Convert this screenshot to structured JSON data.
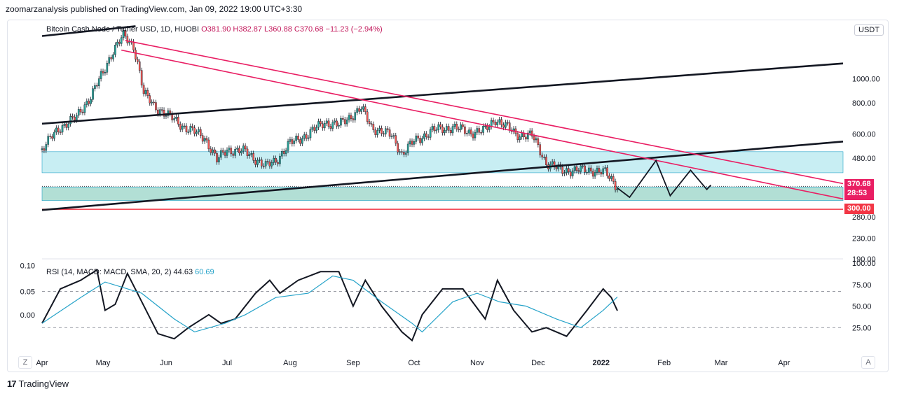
{
  "header": {
    "publisher_line": "zoomarzanalysis published on TradingView.com, Jan 09, 2022 19:00 UTC+3:30"
  },
  "legend": {
    "symbol": "Bitcoin Cash Node / Tether USD, 1D, HUOBI",
    "open": "O381.90",
    "high": "H382.87",
    "low": "L360.88",
    "close": "C370.68",
    "change": "−11.23 (−2.94%)"
  },
  "rsi_legend": {
    "prefix": "RSI (14, MACD: MACD, SMA, 20, 2)",
    "value_a": "44.63",
    "value_b": "60.69"
  },
  "unit": "USDT",
  "price_tag": {
    "price": "370.68",
    "countdown": "28:53"
  },
  "level_tag": "300.00",
  "corner_left": "Z",
  "corner_right": "A",
  "brand": {
    "logo": "17",
    "name": "TradingView"
  },
  "chart_data": [
    {
      "type": "candlestick",
      "name": "price",
      "y_scale": "log",
      "y_ticks": [
        "1000.00",
        "800.00",
        "600.00",
        "480.00",
        "280.00",
        "230.00",
        "190.00"
      ],
      "y_tick_values": [
        1000,
        800,
        600,
        480,
        280,
        230,
        190
      ],
      "x_ticks": [
        "Apr",
        "May",
        "Jun",
        "Jul",
        "Aug",
        "Sep",
        "Oct",
        "Nov",
        "Dec",
        "2022",
        "Feb",
        "Mar",
        "Apr"
      ],
      "x_tick_dates": [
        "2021-04-01",
        "2021-05-01",
        "2021-06-01",
        "2021-07-01",
        "2021-08-01",
        "2021-09-01",
        "2021-10-01",
        "2021-11-01",
        "2021-12-01",
        "2022-01-01",
        "2022-02-01",
        "2022-03-01",
        "2022-04-01"
      ],
      "ohlc_last": {
        "open": 381.9,
        "high": 382.87,
        "low": 360.88,
        "close": 370.68
      },
      "closes_approx": [
        [
          "2021-04-01",
          520
        ],
        [
          "2021-04-10",
          640
        ],
        [
          "2021-04-18",
          700
        ],
        [
          "2021-04-25",
          850
        ],
        [
          "2021-05-01",
          1050
        ],
        [
          "2021-05-06",
          1300
        ],
        [
          "2021-05-11",
          1480
        ],
        [
          "2021-05-16",
          1350
        ],
        [
          "2021-05-21",
          870
        ],
        [
          "2021-05-26",
          780
        ],
        [
          "2021-06-01",
          720
        ],
        [
          "2021-06-10",
          640
        ],
        [
          "2021-06-20",
          580
        ],
        [
          "2021-06-26",
          470
        ],
        [
          "2021-07-01",
          520
        ],
        [
          "2021-07-10",
          510
        ],
        [
          "2021-07-20",
          445
        ],
        [
          "2021-07-25",
          470
        ],
        [
          "2021-08-01",
          550
        ],
        [
          "2021-08-10",
          600
        ],
        [
          "2021-08-18",
          670
        ],
        [
          "2021-08-25",
          650
        ],
        [
          "2021-09-05",
          760
        ],
        [
          "2021-09-10",
          640
        ],
        [
          "2021-09-20",
          590
        ],
        [
          "2021-09-25",
          500
        ],
        [
          "2021-10-01",
          560
        ],
        [
          "2021-10-10",
          620
        ],
        [
          "2021-10-20",
          640
        ],
        [
          "2021-10-28",
          610
        ],
        [
          "2021-11-05",
          620
        ],
        [
          "2021-11-10",
          690
        ],
        [
          "2021-11-20",
          600
        ],
        [
          "2021-11-28",
          590
        ],
        [
          "2021-12-05",
          460
        ],
        [
          "2021-12-12",
          430
        ],
        [
          "2021-12-20",
          430
        ],
        [
          "2021-12-28",
          430
        ],
        [
          "2022-01-03",
          420
        ],
        [
          "2022-01-09",
          370.68
        ]
      ],
      "zones": [
        {
          "from": 420,
          "to": 510,
          "color": "#c8eef3"
        },
        {
          "from": 325,
          "to": 368,
          "color": "#b2dfd5"
        }
      ],
      "horizontal_line": {
        "value": 300,
        "color": "#f23645"
      },
      "trendlines": [
        {
          "color": "#131722",
          "from": [
            "2021-04-01",
            1480
          ],
          "to": [
            "2021-05-17",
            1620
          ]
        },
        {
          "color": "#131722",
          "from": [
            "2021-04-01",
            660
          ],
          "to": [
            "2022-04-30",
            1150
          ]
        },
        {
          "color": "#131722",
          "from": [
            "2021-04-01",
            298
          ],
          "to": [
            "2022-04-30",
            560
          ]
        },
        {
          "color": "#e91e63",
          "from": [
            "2021-05-10",
            1300
          ],
          "to": [
            "2022-04-30",
            330
          ]
        },
        {
          "color": "#e91e63",
          "from": [
            "2021-05-12",
            1420
          ],
          "to": [
            "2022-04-30",
            380
          ]
        }
      ],
      "projection": [
        [
          "2022-01-09",
          365
        ],
        [
          "2022-01-15",
          335
        ],
        [
          "2022-01-28",
          470
        ],
        [
          "2022-02-04",
          340
        ],
        [
          "2022-02-14",
          430
        ],
        [
          "2022-02-22",
          360
        ],
        [
          "2022-02-24",
          375
        ]
      ]
    },
    {
      "type": "line",
      "name": "oscillator",
      "y_ticks": [
        "0.10",
        "0.05",
        "0.00"
      ],
      "y_ticks_right": [
        "100.00",
        "75.00",
        "50.00",
        "25.00"
      ],
      "y_ticks_right_values": [
        100,
        75,
        50,
        25
      ],
      "guide_levels": [
        67,
        25
      ],
      "series": [
        {
          "name": "RSI",
          "color": "#131722",
          "values": [
            [
              "2021-04-01",
              30
            ],
            [
              "2021-04-10",
              70
            ],
            [
              "2021-04-20",
              80
            ],
            [
              "2021-04-28",
              92
            ],
            [
              "2021-05-02",
              45
            ],
            [
              "2021-05-07",
              52
            ],
            [
              "2021-05-13",
              88
            ],
            [
              "2021-05-19",
              60
            ],
            [
              "2021-05-28",
              18
            ],
            [
              "2021-06-05",
              12
            ],
            [
              "2021-06-12",
              25
            ],
            [
              "2021-06-22",
              40
            ],
            [
              "2021-06-28",
              30
            ],
            [
              "2021-07-05",
              35
            ],
            [
              "2021-07-15",
              65
            ],
            [
              "2021-07-22",
              80
            ],
            [
              "2021-07-27",
              65
            ],
            [
              "2021-08-05",
              80
            ],
            [
              "2021-08-16",
              90
            ],
            [
              "2021-08-25",
              90
            ],
            [
              "2021-09-01",
              50
            ],
            [
              "2021-09-07",
              80
            ],
            [
              "2021-09-15",
              50
            ],
            [
              "2021-09-25",
              20
            ],
            [
              "2021-09-30",
              10
            ],
            [
              "2021-10-05",
              40
            ],
            [
              "2021-10-15",
              70
            ],
            [
              "2021-10-25",
              70
            ],
            [
              "2021-11-05",
              35
            ],
            [
              "2021-11-11",
              80
            ],
            [
              "2021-11-19",
              45
            ],
            [
              "2021-11-28",
              20
            ],
            [
              "2021-12-05",
              25
            ],
            [
              "2021-12-15",
              15
            ],
            [
              "2021-12-25",
              45
            ],
            [
              "2022-01-02",
              70
            ],
            [
              "2022-01-06",
              60
            ],
            [
              "2022-01-09",
              44.63
            ]
          ]
        },
        {
          "name": "MACD",
          "color": "#26a3c9",
          "values": [
            [
              "2021-04-01",
              30
            ],
            [
              "2021-04-20",
              60
            ],
            [
              "2021-05-02",
              78
            ],
            [
              "2021-05-20",
              65
            ],
            [
              "2021-06-05",
              35
            ],
            [
              "2021-06-15",
              20
            ],
            [
              "2021-06-30",
              30
            ],
            [
              "2021-07-10",
              40
            ],
            [
              "2021-07-25",
              60
            ],
            [
              "2021-08-10",
              65
            ],
            [
              "2021-08-22",
              85
            ],
            [
              "2021-09-01",
              80
            ],
            [
              "2021-09-15",
              55
            ],
            [
              "2021-09-30",
              30
            ],
            [
              "2021-10-05",
              20
            ],
            [
              "2021-10-20",
              55
            ],
            [
              "2021-11-01",
              65
            ],
            [
              "2021-11-12",
              55
            ],
            [
              "2021-11-25",
              50
            ],
            [
              "2021-12-10",
              35
            ],
            [
              "2021-12-22",
              25
            ],
            [
              "2022-01-02",
              45
            ],
            [
              "2022-01-09",
              60.69
            ]
          ]
        }
      ]
    }
  ]
}
